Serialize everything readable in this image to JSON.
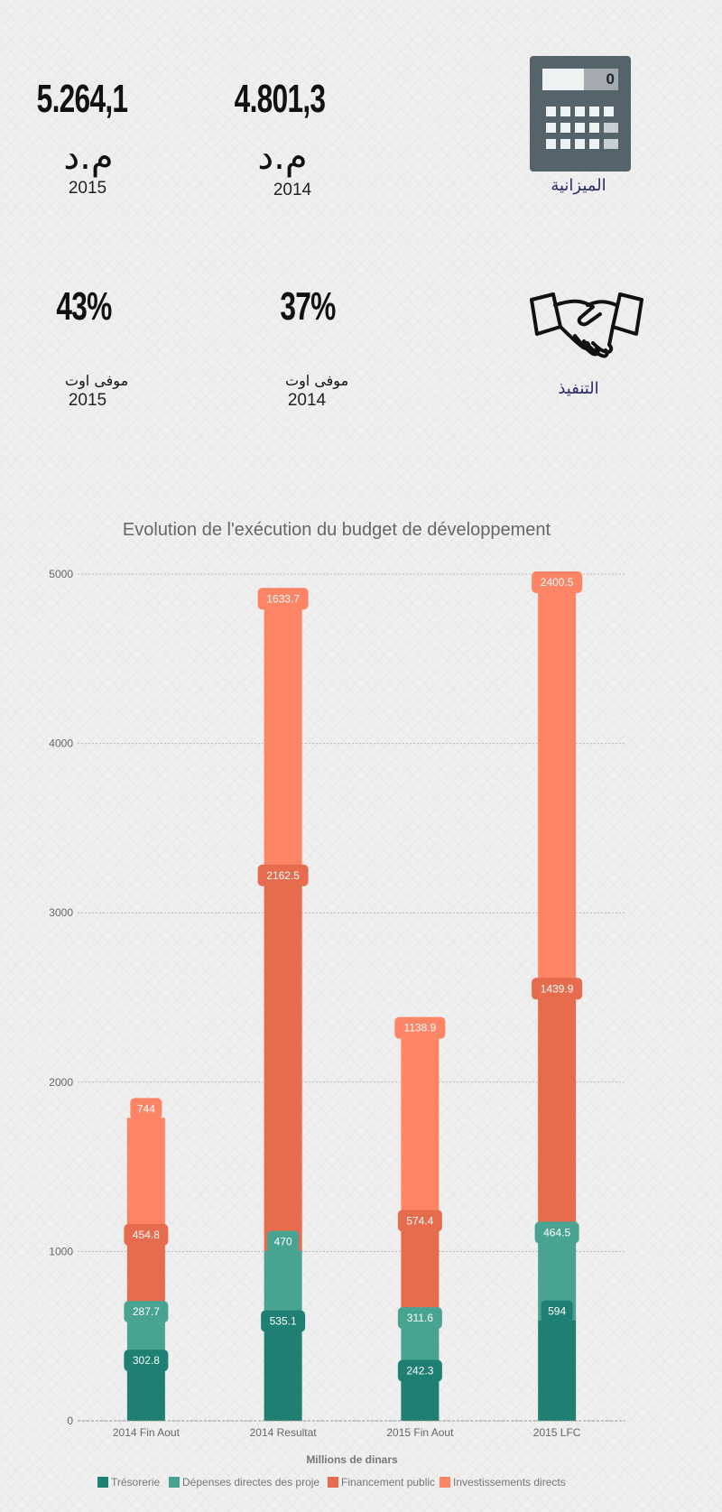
{
  "stats": {
    "budget": {
      "value_2015": "5.264,1",
      "value_2014": "4.801,3",
      "unit": "م.د",
      "year_2015": "2015",
      "year_2014": "2014",
      "label": "الميزانية",
      "icon": "calculator-icon",
      "calc_display": "0"
    },
    "execution": {
      "value_2015": "43%",
      "value_2014": "37%",
      "sub": "موفى اوت",
      "year_2015": "2015",
      "year_2014": "2014",
      "label": "التنفيذ",
      "icon": "handshake-icon"
    }
  },
  "chart_data": {
    "type": "bar",
    "stacked": true,
    "title": "Evolution de l'exécution du budget de développement",
    "xlabel": "Millions de dinars",
    "ylabel": "",
    "ylim": [
      0,
      5000
    ],
    "yticks": [
      "0",
      "1000",
      "2000",
      "3000",
      "4000",
      "5000"
    ],
    "grid": true,
    "legend_position": "bottom",
    "categories": [
      "2014 Fin Aout",
      "2014 Resultat",
      "2015 Fin Aout",
      "2015 LFC"
    ],
    "series": [
      {
        "name": "Trésorerie",
        "color": "#1e7f72",
        "values": [
          302.8,
          535.1,
          242.3,
          594
        ],
        "labels": [
          "302.8",
          "535.1",
          "242.3",
          "594"
        ]
      },
      {
        "name": "Dépenses directes des proje",
        "color": "#48a393",
        "values": [
          287.7,
          470,
          311.6,
          464.5
        ],
        "labels": [
          "287.7",
          "470",
          "311.6",
          "464.5"
        ]
      },
      {
        "name": "Financement public",
        "color": "#e76c4e",
        "values": [
          454.8,
          2162.5,
          574.4,
          1439.9
        ],
        "labels": [
          "454.8",
          "2162.5",
          "574.4",
          "1439.9"
        ]
      },
      {
        "name": "Investissements directs",
        "color": "#fd8566",
        "values": [
          744,
          1633.7,
          1138.9,
          2400.5
        ],
        "labels": [
          "744",
          "1633.7",
          "1138.9",
          "2400.5"
        ]
      }
    ]
  }
}
